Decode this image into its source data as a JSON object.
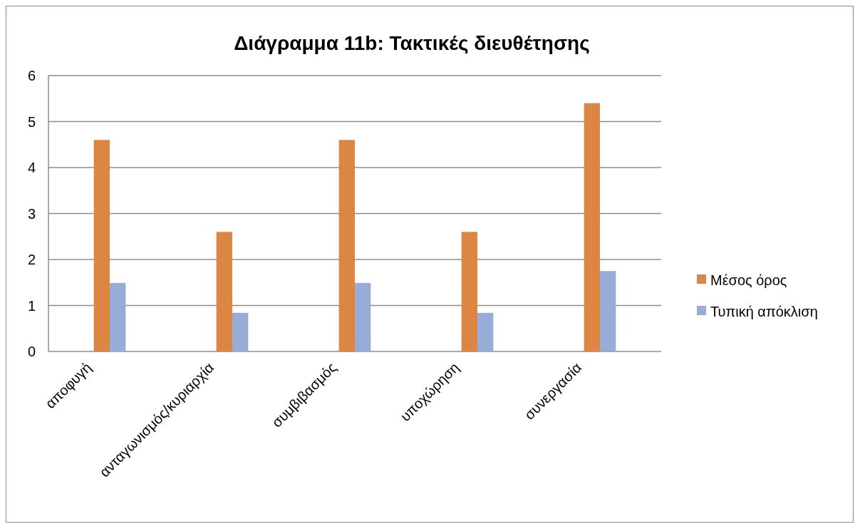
{
  "chart_data": {
    "type": "bar",
    "title": "Διάγραμμα 11b: Τακτικές διευθέτησης",
    "categories": [
      "αποφυγή",
      "ανταγωνισμός/κυριαρχία",
      "συμβιβασμός",
      "υποχώρηση",
      "συνεργασία"
    ],
    "series": [
      {
        "name": "Μέσος όρος",
        "color": "#dd8643",
        "values": [
          4.6,
          2.6,
          4.6,
          2.6,
          5.4
        ]
      },
      {
        "name": "Τυπική απόκλιση",
        "color": "#97acd6",
        "values": [
          1.49,
          0.84,
          1.49,
          0.84,
          1.75
        ]
      }
    ],
    "ylim": [
      0,
      6
    ],
    "yticks": [
      0,
      1,
      2,
      3,
      4,
      5,
      6
    ],
    "grid": "y",
    "legend": "right"
  }
}
